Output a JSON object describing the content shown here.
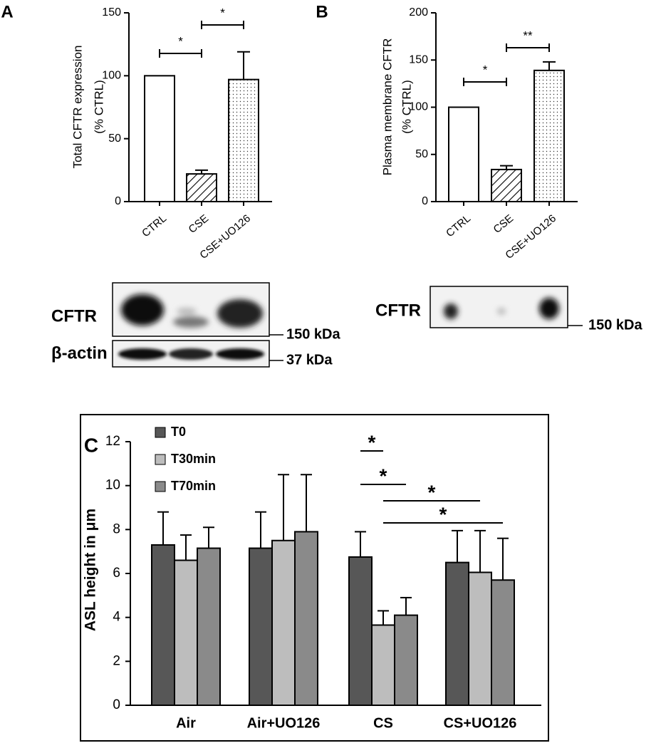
{
  "chart_data": [
    {
      "type": "bar",
      "panel": "A",
      "ylabel": [
        "Total CFTR expression",
        "(% CTRL)"
      ],
      "categories": [
        "CTRL",
        "CSE",
        "CSE+UO126"
      ],
      "values": [
        100,
        22,
        97
      ],
      "errors": [
        null,
        3,
        22
      ],
      "fills": [
        "white",
        "hatch",
        "dots"
      ],
      "ylim": [
        0,
        150
      ],
      "yticks": [
        0,
        50,
        100,
        150
      ],
      "significance": [
        {
          "label": "*",
          "from": "CTRL",
          "to": "CSE"
        },
        {
          "label": "*",
          "from": "CSE",
          "to": "CSE+UO126"
        }
      ],
      "blot": [
        {
          "label": "CFTR",
          "marker": "150 kDa"
        },
        {
          "label": "β-actin",
          "marker": "37 kDa"
        }
      ]
    },
    {
      "type": "bar",
      "panel": "B",
      "ylabel": [
        "Plasma membrane CFTR",
        "(% CTRL)"
      ],
      "categories": [
        "CTRL",
        "CSE",
        "CSE+UO126"
      ],
      "values": [
        100,
        34,
        139
      ],
      "errors": [
        null,
        4,
        9
      ],
      "fills": [
        "white",
        "hatch",
        "dots"
      ],
      "ylim": [
        0,
        200
      ],
      "yticks": [
        0,
        50,
        100,
        150,
        200
      ],
      "significance": [
        {
          "label": "*",
          "from": "CTRL",
          "to": "CSE"
        },
        {
          "label": "**",
          "from": "CSE",
          "to": "CSE+UO126"
        }
      ],
      "blot": [
        {
          "label": "CFTR",
          "marker": "150 kDa"
        }
      ]
    },
    {
      "type": "grouped_bar",
      "panel": "C",
      "ylabel": "ASL height in μm",
      "categories": [
        "Air",
        "Air+UO126",
        "CS",
        "CS+UO126"
      ],
      "series": [
        {
          "name": "T0",
          "color": "#575757",
          "values": [
            7.3,
            7.15,
            6.75,
            6.5
          ],
          "errors": [
            1.5,
            1.65,
            1.15,
            1.45
          ]
        },
        {
          "name": "T30min",
          "color": "#bdbdbd",
          "values": [
            6.6,
            7.5,
            3.65,
            6.05
          ],
          "errors": [
            1.15,
            3.0,
            0.65,
            1.9
          ]
        },
        {
          "name": "T70min",
          "color": "#8a8a8a",
          "values": [
            7.15,
            7.9,
            4.1,
            5.7
          ],
          "errors": [
            0.95,
            2.6,
            0.8,
            1.9
          ]
        }
      ],
      "ylim": [
        0,
        12
      ],
      "yticks": [
        0,
        2,
        4,
        6,
        8,
        10,
        12
      ],
      "significance": [
        {
          "label": "*",
          "from": {
            "category": "CS",
            "series": "T0"
          },
          "to": {
            "category": "CS",
            "series": "T30min"
          }
        },
        {
          "label": "*",
          "from": {
            "category": "CS",
            "series": "T0"
          },
          "to": {
            "category": "CS",
            "series": "T70min"
          }
        },
        {
          "label": "*",
          "from": {
            "category": "CS",
            "series": "T30min"
          },
          "to": {
            "category": "CS+UO126",
            "series": "T30min"
          }
        },
        {
          "label": "*",
          "from": {
            "category": "CS",
            "series": "T30min"
          },
          "to": {
            "category": "CS+UO126",
            "series": "T70min"
          }
        }
      ]
    }
  ]
}
